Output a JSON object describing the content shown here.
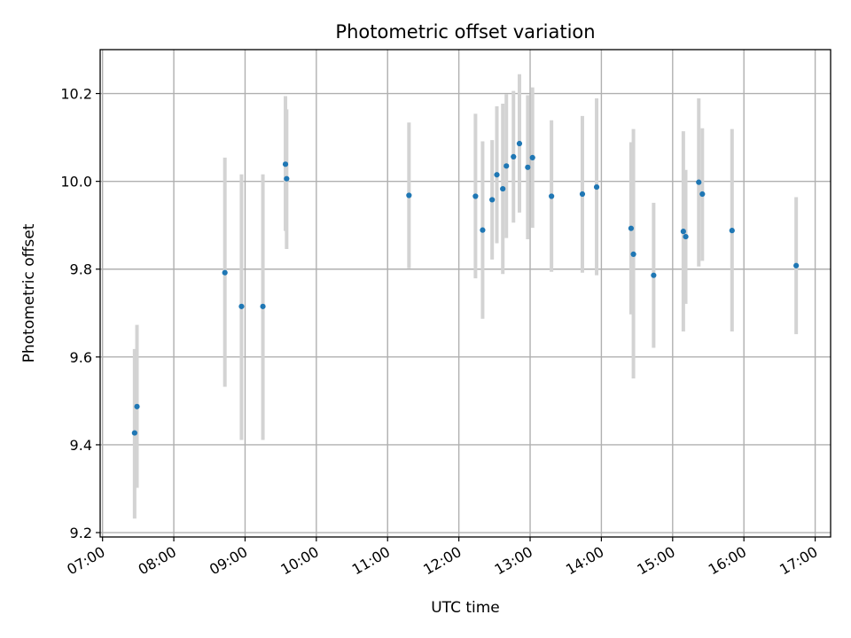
{
  "chart_data": {
    "type": "scatter",
    "title": "Photometric offset variation",
    "xlabel": "UTC time",
    "ylabel": "Photometric offset",
    "x_ticks": [
      "07:00",
      "08:00",
      "09:00",
      "10:00",
      "11:00",
      "12:00",
      "13:00",
      "14:00",
      "15:00",
      "16:00",
      "17:00"
    ],
    "y_ticks": [
      "9.2",
      "9.4",
      "9.6",
      "9.8",
      "10.0",
      "10.2"
    ],
    "xlim": [
      "06:58",
      "17:13"
    ],
    "ylim": [
      9.19,
      10.3
    ],
    "grid": true,
    "colors": {
      "points": "#1f77b4",
      "error_bars": "#d3d3d3",
      "grid": "#b0b0b0"
    },
    "points": [
      {
        "x": "07:27",
        "y": 9.427,
        "lo": 9.232,
        "hi": 9.618
      },
      {
        "x": "07:29",
        "y": 9.487,
        "lo": 9.302,
        "hi": 9.673
      },
      {
        "x": "08:43",
        "y": 9.792,
        "lo": 9.532,
        "hi": 10.054
      },
      {
        "x": "08:57",
        "y": 9.715,
        "lo": 9.411,
        "hi": 10.016
      },
      {
        "x": "09:15",
        "y": 9.715,
        "lo": 9.411,
        "hi": 10.016
      },
      {
        "x": "09:34",
        "y": 10.039,
        "lo": 9.887,
        "hi": 10.194
      },
      {
        "x": "09:35",
        "y": 10.006,
        "lo": 9.846,
        "hi": 10.164
      },
      {
        "x": "11:18",
        "y": 9.968,
        "lo": 9.802,
        "hi": 10.134
      },
      {
        "x": "12:14",
        "y": 9.966,
        "lo": 9.779,
        "hi": 10.154
      },
      {
        "x": "12:20",
        "y": 9.889,
        "lo": 9.687,
        "hi": 10.091
      },
      {
        "x": "12:28",
        "y": 9.958,
        "lo": 9.822,
        "hi": 10.094
      },
      {
        "x": "12:32",
        "y": 10.015,
        "lo": 9.859,
        "hi": 10.171
      },
      {
        "x": "12:37",
        "y": 9.983,
        "lo": 9.789,
        "hi": 10.177
      },
      {
        "x": "12:40",
        "y": 10.035,
        "lo": 9.871,
        "hi": 10.199
      },
      {
        "x": "12:46",
        "y": 10.056,
        "lo": 9.906,
        "hi": 10.206
      },
      {
        "x": "12:51",
        "y": 10.086,
        "lo": 9.929,
        "hi": 10.244
      },
      {
        "x": "12:58",
        "y": 10.032,
        "lo": 9.868,
        "hi": 10.196
      },
      {
        "x": "13:02",
        "y": 10.054,
        "lo": 9.894,
        "hi": 10.214
      },
      {
        "x": "13:18",
        "y": 9.966,
        "lo": 9.794,
        "hi": 10.139
      },
      {
        "x": "13:44",
        "y": 9.971,
        "lo": 9.792,
        "hi": 10.149
      },
      {
        "x": "13:56",
        "y": 9.987,
        "lo": 9.786,
        "hi": 10.189
      },
      {
        "x": "14:25",
        "y": 9.893,
        "lo": 9.697,
        "hi": 10.089
      },
      {
        "x": "14:27",
        "y": 9.834,
        "lo": 9.551,
        "hi": 10.119
      },
      {
        "x": "14:44",
        "y": 9.786,
        "lo": 9.621,
        "hi": 9.951
      },
      {
        "x": "15:09",
        "y": 9.886,
        "lo": 9.658,
        "hi": 10.114
      },
      {
        "x": "15:11",
        "y": 9.874,
        "lo": 9.721,
        "hi": 10.026
      },
      {
        "x": "15:22",
        "y": 9.998,
        "lo": 9.806,
        "hi": 10.189
      },
      {
        "x": "15:25",
        "y": 9.971,
        "lo": 9.819,
        "hi": 10.121
      },
      {
        "x": "15:50",
        "y": 9.888,
        "lo": 9.658,
        "hi": 10.119
      },
      {
        "x": "16:44",
        "y": 9.808,
        "lo": 9.652,
        "hi": 9.964
      }
    ]
  }
}
